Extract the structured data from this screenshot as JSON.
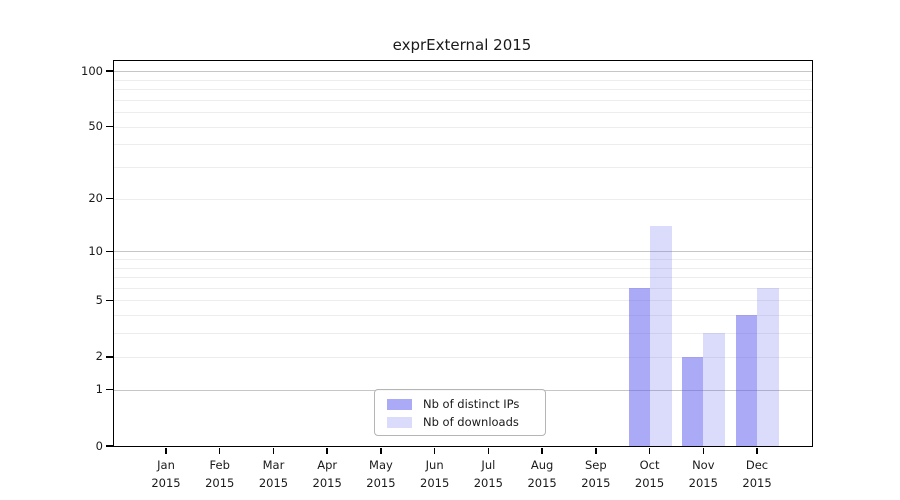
{
  "title": "exprExternal 2015",
  "colors": {
    "ips_fill": "rgba(85,85,240,0.5)",
    "downloads_fill": "rgba(85,85,240,0.21)",
    "grid_major": "#c6c6c6",
    "grid_minor": "#ededed",
    "axis": "#000000",
    "text": "#1a1a1a",
    "legend_border": "#b5b5b5"
  },
  "legend": {
    "items": [
      {
        "label": "Nb of distinct IPs",
        "color_key": "ips_fill"
      },
      {
        "label": "Nb of downloads",
        "color_key": "downloads_fill"
      }
    ]
  },
  "chart_data": {
    "type": "bar",
    "title": "exprExternal 2015",
    "categories": [
      {
        "month": "Jan",
        "year": "2015"
      },
      {
        "month": "Feb",
        "year": "2015"
      },
      {
        "month": "Mar",
        "year": "2015"
      },
      {
        "month": "Apr",
        "year": "2015"
      },
      {
        "month": "May",
        "year": "2015"
      },
      {
        "month": "Jun",
        "year": "2015"
      },
      {
        "month": "Jul",
        "year": "2015"
      },
      {
        "month": "Aug",
        "year": "2015"
      },
      {
        "month": "Sep",
        "year": "2015"
      },
      {
        "month": "Oct",
        "year": "2015"
      },
      {
        "month": "Nov",
        "year": "2015"
      },
      {
        "month": "Dec",
        "year": "2015"
      }
    ],
    "series": [
      {
        "name": "Nb of distinct IPs",
        "color_key": "ips_fill",
        "values": [
          0,
          0,
          0,
          0,
          0,
          0,
          0,
          0,
          0,
          6,
          2,
          4
        ]
      },
      {
        "name": "Nb of downloads",
        "color_key": "downloads_fill",
        "values": [
          0,
          0,
          0,
          0,
          0,
          0,
          0,
          0,
          0,
          14,
          3,
          6
        ]
      }
    ],
    "xlabel": "",
    "ylabel": "",
    "y_scale": "log10(1+x)",
    "y_ticks": [
      0,
      1,
      2,
      5,
      10,
      20,
      50,
      100
    ],
    "y_major_gridlines": [
      1,
      10,
      100
    ],
    "y_minor_gridlines": [
      2,
      3,
      4,
      5,
      6,
      7,
      8,
      9,
      20,
      30,
      40,
      50,
      60,
      70,
      80,
      90
    ],
    "ylim": [
      0,
      114
    ],
    "grid": true,
    "legend_position": "lower center"
  }
}
